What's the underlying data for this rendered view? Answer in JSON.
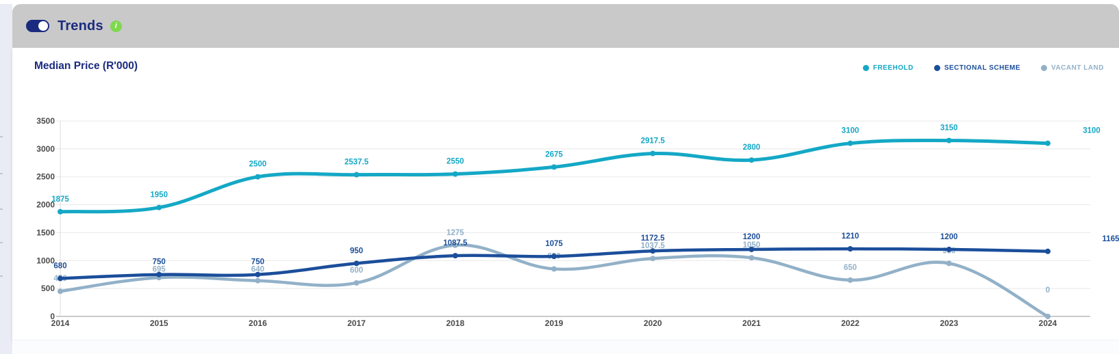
{
  "header": {
    "title": "Trends",
    "info_icon": "i",
    "toggle": {
      "state": "on"
    }
  },
  "chart": {
    "title": "Median Price (R'000)",
    "legend": [
      {
        "label": "FREEHOLD",
        "color": "#14A8C6"
      },
      {
        "label": "SECTIONAL SCHEME",
        "color": "#1B4E9B"
      },
      {
        "label": "VACANT LAND",
        "color": "#92B1C8"
      }
    ]
  },
  "chart_data": {
    "type": "line",
    "title": "Median Price (R'000)",
    "xlabel": "",
    "ylabel": "",
    "x": [
      "2014",
      "2015",
      "2016",
      "2017",
      "2018",
      "2019",
      "2020",
      "2021",
      "2022",
      "2023",
      "2024"
    ],
    "series": [
      {
        "name": "FREEHOLD",
        "color": "#14A8C6",
        "values": [
          1875,
          1950,
          2500,
          2537.5,
          2550,
          2675,
          2917.5,
          2800,
          3100,
          3150,
          3100
        ],
        "labels": [
          "1875",
          "1950",
          "2500",
          "2537.5",
          "2550",
          "2675",
          "2917.5",
          "2800",
          "3100",
          "3150",
          "3100"
        ]
      },
      {
        "name": "SECTIONAL SCHEME",
        "color": "#1B4E9B",
        "values": [
          680,
          750,
          750,
          950,
          1087.5,
          1075,
          1172.5,
          1200,
          1210,
          1200,
          1165.12
        ],
        "labels": [
          "680",
          "750",
          "750",
          "950",
          "1087.5",
          "1075",
          "1172.5",
          "1200",
          "1210",
          "1200",
          "1165.12"
        ]
      },
      {
        "name": "VACANT LAND",
        "color": "#92B1C8",
        "values": [
          450,
          695,
          640,
          600,
          1275,
          850,
          1037.5,
          1050,
          650,
          950,
          0
        ],
        "labels": [
          "450",
          "695",
          "640",
          "600",
          "1275",
          "850",
          "1037.5",
          "1050",
          "650",
          "950",
          "0"
        ]
      }
    ],
    "ylim": [
      0,
      3500
    ],
    "yticks": [
      0,
      500,
      1000,
      1500,
      2000,
      2500,
      3000,
      3500
    ],
    "grid": true,
    "smooth": true,
    "legend_position": "top-right"
  }
}
